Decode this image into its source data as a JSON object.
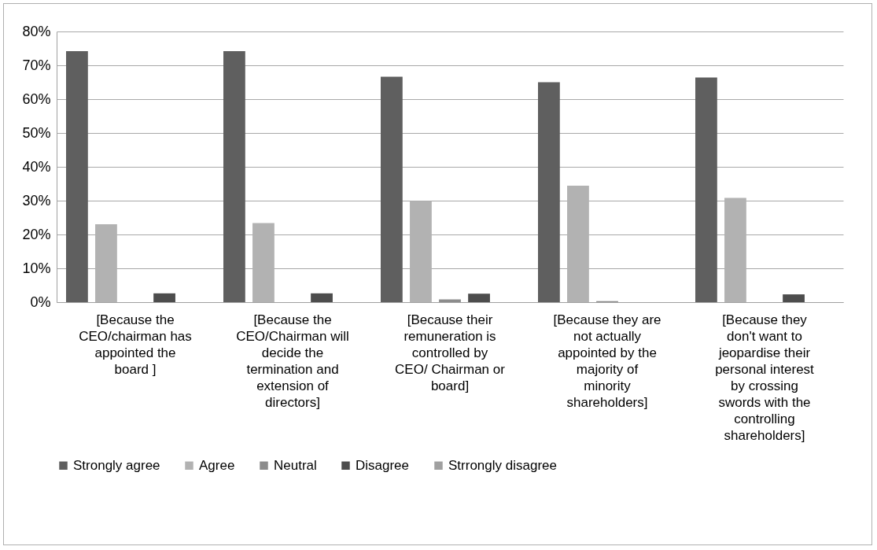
{
  "chart_data": {
    "type": "bar",
    "categories": [
      "[Because the CEO/chairman has appointed the board ]",
      "[Because the CEO/Chairman will decide the termination and extension of directors]",
      "[Because their remuneration is controlled by CEO/ Chairman or board]",
      "[Because they are not actually appointed by the majority of minority shareholders]",
      "[Because they don't want to jeopardise their personal interest by crossing swords with the controlling shareholders]"
    ],
    "series": [
      {
        "name": "Strongly agree",
        "color": "#5f5f5f",
        "values": [
          74.2,
          74.2,
          66.6,
          65.0,
          66.4
        ]
      },
      {
        "name": "Agree",
        "color": "#b2b2b2",
        "values": [
          23.0,
          23.4,
          29.9,
          34.4,
          30.8
        ]
      },
      {
        "name": "Neutral",
        "color": "#8c8c8c",
        "values": [
          0,
          0,
          0.8,
          0.3,
          0
        ]
      },
      {
        "name": "Disagree",
        "color": "#4d4d4d",
        "values": [
          2.6,
          2.6,
          2.5,
          0,
          2.3
        ]
      },
      {
        "name": "Strrongly disagree",
        "color": "#a0a0a0",
        "values": [
          0,
          0,
          0,
          0,
          0
        ]
      }
    ],
    "ylim": [
      0,
      80
    ],
    "yticks": [
      {
        "value": 0,
        "label": "0%"
      },
      {
        "value": 10,
        "label": "10%"
      },
      {
        "value": 20,
        "label": "20%"
      },
      {
        "value": 30,
        "label": "30%"
      },
      {
        "value": 40,
        "label": "40%"
      },
      {
        "value": 50,
        "label": "50%"
      },
      {
        "value": 60,
        "label": "60%"
      },
      {
        "value": 70,
        "label": "70%"
      },
      {
        "value": 80,
        "label": "80%"
      }
    ],
    "grid": "y",
    "legend": "bottom"
  }
}
